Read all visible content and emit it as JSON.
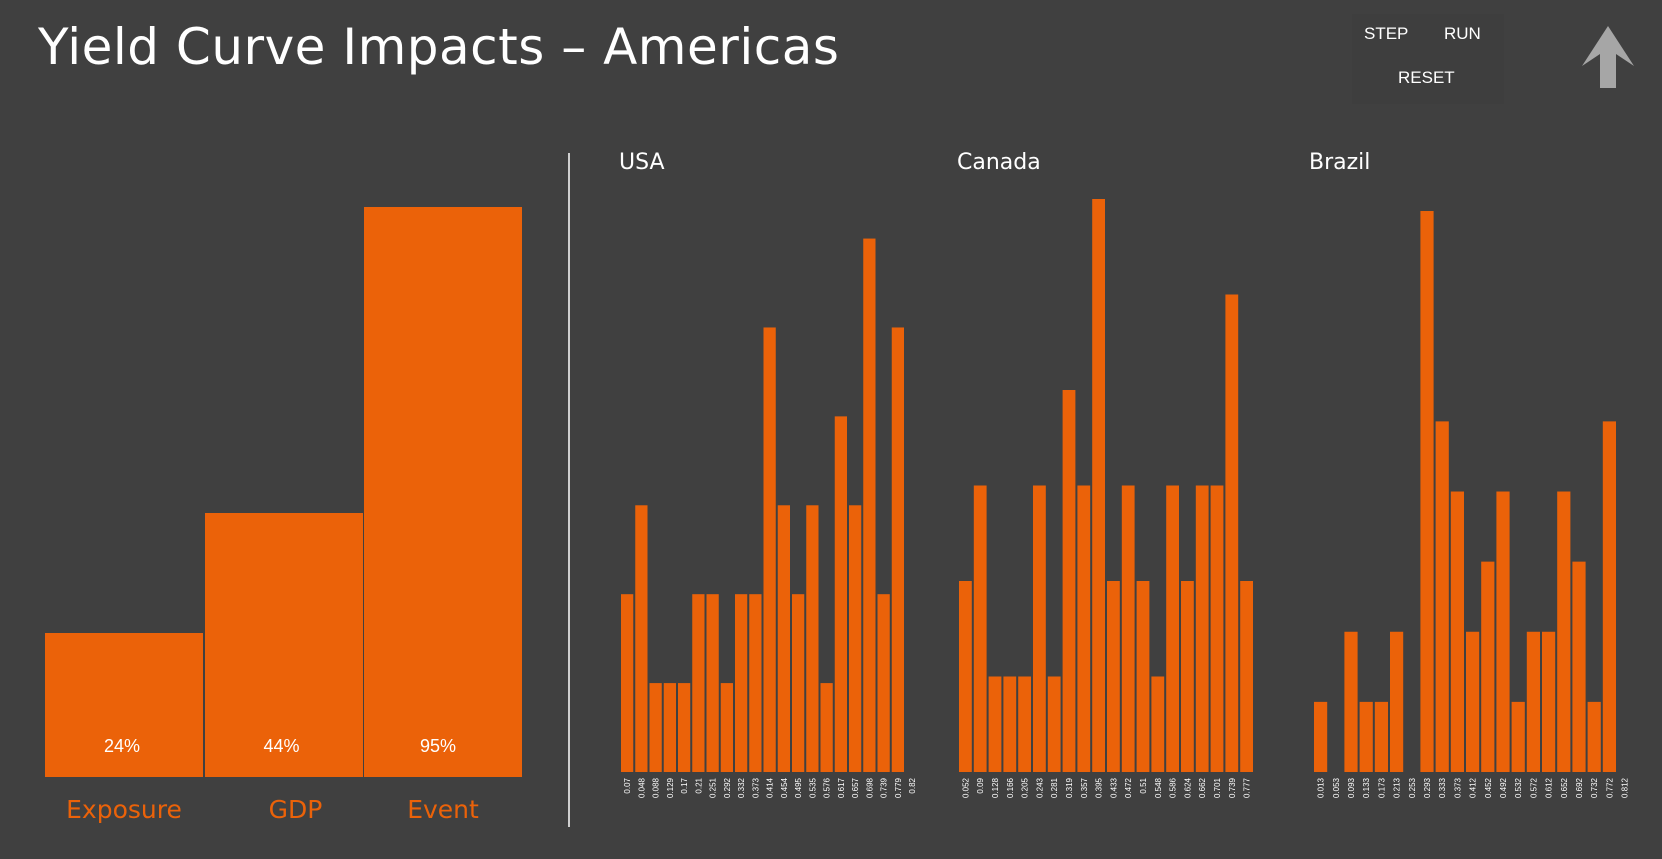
{
  "title": "Yield Curve Impacts – Americas",
  "controls": {
    "step": "STEP",
    "run": "RUN",
    "reset": "RESET"
  },
  "icons": {
    "nav": "up-arrow-icon"
  },
  "colors": {
    "background": "#404040",
    "bar": "#eb6209",
    "text": "#ffffff",
    "arrow": "#a6a6a6"
  },
  "chart_data": [
    {
      "type": "bar",
      "title": "",
      "categories": [
        "Exposure",
        "GDP",
        "Event"
      ],
      "values": [
        24,
        44,
        95
      ],
      "value_labels": [
        "24%",
        "44%",
        "95%"
      ],
      "ylim": [
        0,
        100
      ],
      "grid": false
    },
    {
      "type": "bar",
      "title": "USA",
      "categories": [
        "0.07",
        "0.048",
        "0.088",
        "0.129",
        "0.17",
        "0.21",
        "0.251",
        "0.292",
        "0.332",
        "0.373",
        "0.414",
        "0.454",
        "0.495",
        "0.535",
        "0.576",
        "0.617",
        "0.657",
        "0.698",
        "0.739",
        "0.779",
        "0.82"
      ],
      "values": [
        2,
        3,
        1,
        1,
        1,
        2,
        2,
        1,
        2,
        2,
        5,
        3,
        2,
        3,
        1,
        4,
        3,
        6,
        2,
        5,
        0
      ],
      "ylim": [
        0,
        6.4
      ],
      "grid": false
    },
    {
      "type": "bar",
      "title": "Canada",
      "categories": [
        "0.052",
        "0.09",
        "0.128",
        "0.166",
        "0.205",
        "0.243",
        "0.281",
        "0.319",
        "0.357",
        "0.395",
        "0.433",
        "0.472",
        "0.51",
        "0.548",
        "0.586",
        "0.624",
        "0.662",
        "0.701",
        "0.739",
        "0.777",
        "0.815"
      ],
      "values": [
        2,
        3,
        1,
        1,
        1,
        3,
        1,
        4,
        3,
        6,
        2,
        3,
        2,
        1,
        3,
        2,
        3,
        3,
        5,
        2,
        0
      ],
      "ylim": [
        0,
        6
      ],
      "grid": false
    },
    {
      "type": "bar",
      "title": "Brazil",
      "categories": [
        "0.013",
        "0.053",
        "0.093",
        "0.133",
        "0.173",
        "0.213",
        "0.253",
        "0.293",
        "0.333",
        "0.373",
        "0.412",
        "0.452",
        "0.492",
        "0.532",
        "0.572",
        "0.612",
        "0.652",
        "0.692",
        "0.732",
        "0.772",
        "0.812"
      ],
      "values": [
        1,
        0,
        2,
        1,
        1,
        2,
        0,
        8,
        5,
        4,
        2,
        3,
        4,
        1,
        2,
        2,
        4,
        3,
        1,
        5,
        0
      ],
      "ylim": [
        0,
        8.1
      ],
      "grid": false
    }
  ]
}
